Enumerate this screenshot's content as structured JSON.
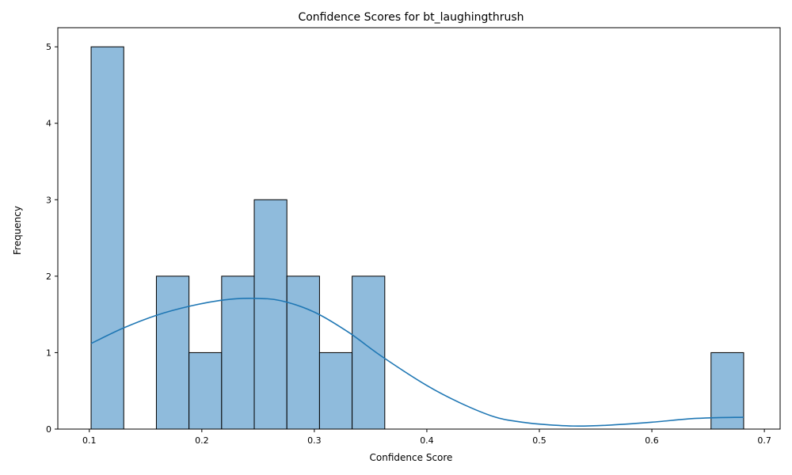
{
  "chart_data": {
    "type": "bar",
    "title": "Confidence Scores for bt_laughingthrush",
    "xlabel": "Confidence Score",
    "ylabel": "Frequency",
    "xlim": [
      0.072,
      0.714
    ],
    "ylim": [
      0,
      5.25
    ],
    "xticks": [
      {
        "value": 0.1,
        "label": "0.1"
      },
      {
        "value": 0.2,
        "label": "0.2"
      },
      {
        "value": 0.3,
        "label": "0.3"
      },
      {
        "value": 0.4,
        "label": "0.4"
      },
      {
        "value": 0.5,
        "label": "0.5"
      },
      {
        "value": 0.6,
        "label": "0.6"
      },
      {
        "value": 0.7,
        "label": "0.7"
      }
    ],
    "yticks": [
      {
        "value": 0,
        "label": "0"
      },
      {
        "value": 1,
        "label": "1"
      },
      {
        "value": 2,
        "label": "2"
      },
      {
        "value": 3,
        "label": "3"
      },
      {
        "value": 4,
        "label": "4"
      },
      {
        "value": 5,
        "label": "5"
      }
    ],
    "bins": [
      {
        "x0": 0.1016,
        "x1": 0.1306,
        "count": 5
      },
      {
        "x0": 0.1306,
        "x1": 0.1596,
        "count": 0
      },
      {
        "x0": 0.1596,
        "x1": 0.1886,
        "count": 2
      },
      {
        "x0": 0.1886,
        "x1": 0.2176,
        "count": 1
      },
      {
        "x0": 0.2176,
        "x1": 0.2466,
        "count": 2
      },
      {
        "x0": 0.2466,
        "x1": 0.2756,
        "count": 3
      },
      {
        "x0": 0.2756,
        "x1": 0.3046,
        "count": 2
      },
      {
        "x0": 0.3046,
        "x1": 0.3336,
        "count": 1
      },
      {
        "x0": 0.3336,
        "x1": 0.3626,
        "count": 2
      },
      {
        "x0": 0.3626,
        "x1": 0.3916,
        "count": 0
      },
      {
        "x0": 0.3916,
        "x1": 0.4206,
        "count": 0
      },
      {
        "x0": 0.4206,
        "x1": 0.4496,
        "count": 0
      },
      {
        "x0": 0.4496,
        "x1": 0.4786,
        "count": 0
      },
      {
        "x0": 0.4786,
        "x1": 0.5076,
        "count": 0
      },
      {
        "x0": 0.5076,
        "x1": 0.5366,
        "count": 0
      },
      {
        "x0": 0.5366,
        "x1": 0.5656,
        "count": 0
      },
      {
        "x0": 0.5656,
        "x1": 0.5946,
        "count": 0
      },
      {
        "x0": 0.5946,
        "x1": 0.6236,
        "count": 0
      },
      {
        "x0": 0.6236,
        "x1": 0.6526,
        "count": 0
      },
      {
        "x0": 0.6526,
        "x1": 0.6816,
        "count": 1
      }
    ],
    "kde": {
      "x": [
        0.1016,
        0.13,
        0.16,
        0.19,
        0.22,
        0.245,
        0.27,
        0.3,
        0.33,
        0.36,
        0.4,
        0.43,
        0.46,
        0.48,
        0.5,
        0.53,
        0.56,
        0.6,
        0.64,
        0.6816
      ],
      "y": [
        1.12,
        1.32,
        1.49,
        1.61,
        1.69,
        1.71,
        1.68,
        1.53,
        1.27,
        0.95,
        0.57,
        0.34,
        0.16,
        0.1,
        0.065,
        0.04,
        0.05,
        0.09,
        0.14,
        0.155
      ]
    },
    "colors": {
      "bar_fill": "#8fbbdc",
      "bar_edge": "#000000",
      "kde_line": "#1f77b4"
    },
    "grid": false,
    "legend": "none"
  }
}
